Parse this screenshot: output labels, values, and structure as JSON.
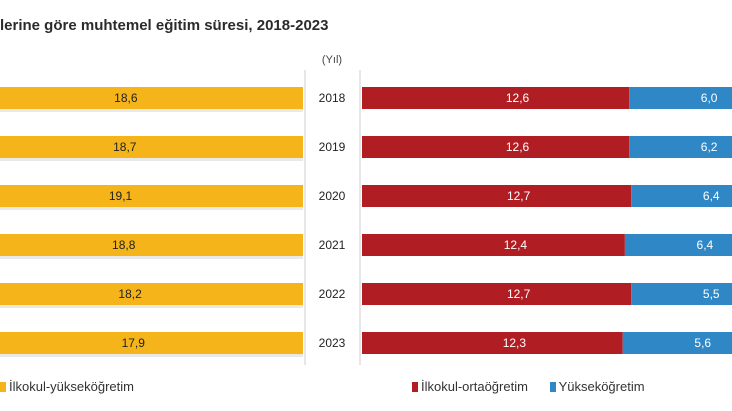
{
  "title": "lerine göre muhtemel eğitim süresi, 2018-2023",
  "year_axis_label": "(Yıl)",
  "colors": {
    "total": "#f5b51a",
    "primary_secondary": "#b01e24",
    "higher": "#2f87c6",
    "background_shadow": "#e9e9e9"
  },
  "legend": {
    "left": [
      {
        "label": "İlkokul-yükseköğretim",
        "color_key": "total"
      }
    ],
    "right": [
      {
        "label": "İlkokul-ortaöğretim",
        "color_key": "primary_secondary"
      },
      {
        "label": "Yükseköğretim",
        "color_key": "higher"
      }
    ]
  },
  "chart_data": [
    {
      "type": "bar",
      "orientation": "horizontal",
      "direction": "right-to-left",
      "categories": [
        "2018",
        "2019",
        "2020",
        "2021",
        "2022",
        "2023"
      ],
      "series": [
        {
          "name": "İlkokul-yükseköğretim",
          "values": [
            18.6,
            18.7,
            19.1,
            18.8,
            18.2,
            17.9
          ],
          "labels": [
            "18,6",
            "18,7",
            "19,1",
            "18,8",
            "18,2",
            "17,9"
          ]
        }
      ],
      "xlim": [
        0,
        20
      ]
    },
    {
      "type": "bar",
      "orientation": "horizontal",
      "stacked": true,
      "categories": [
        "2018",
        "2019",
        "2020",
        "2021",
        "2022",
        "2023"
      ],
      "series": [
        {
          "name": "İlkokul-ortaöğretim",
          "values": [
            12.6,
            12.6,
            12.7,
            12.4,
            12.7,
            12.3
          ],
          "labels": [
            "12,6",
            "12,6",
            "12,7",
            "12,4",
            "12,7",
            "12,3"
          ]
        },
        {
          "name": "Yükseköğretim",
          "values": [
            6.0,
            6.2,
            6.4,
            6.4,
            5.5,
            5.6
          ],
          "labels": [
            "6,0",
            "6,2",
            "6,4",
            "6,4",
            "5,5",
            "5,6"
          ]
        }
      ],
      "xlim": [
        0,
        20
      ]
    }
  ]
}
